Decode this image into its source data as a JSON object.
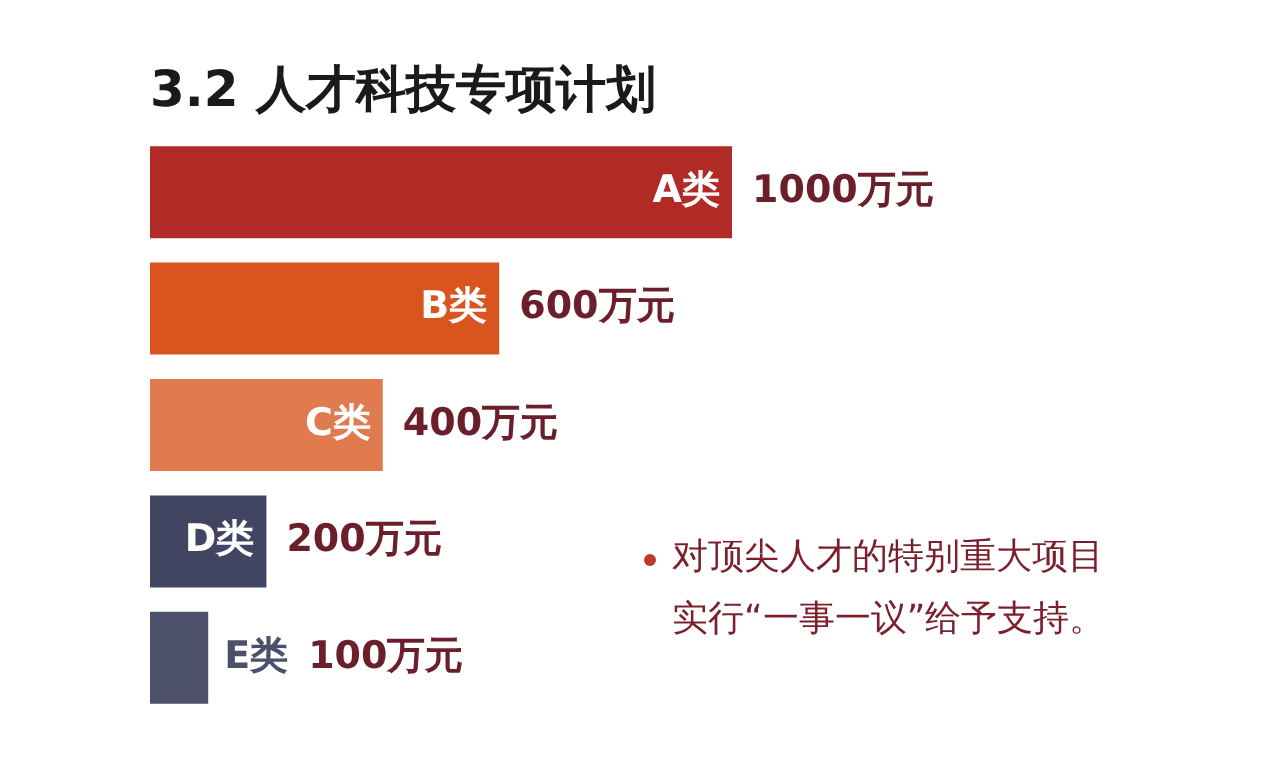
{
  "chart_data": {
    "type": "bar",
    "orientation": "horizontal",
    "tick_labels": false,
    "title": "3.2 人才科技专项计划",
    "categories": [
      "A类",
      "B类",
      "C类",
      "D类",
      "E类"
    ],
    "values": [
      1000,
      600,
      400,
      200,
      100
    ],
    "value_labels": [
      "1000万元",
      "600万元",
      "400万元",
      "200万元",
      "100万元"
    ],
    "colors": [
      "#b22a25",
      "#d9541e",
      "#e07b50",
      "#414562",
      "#4d506a"
    ],
    "annotations": [
      "对顶尖人才的特别重大项目",
      "实行“一事一议”给予支持。"
    ]
  }
}
